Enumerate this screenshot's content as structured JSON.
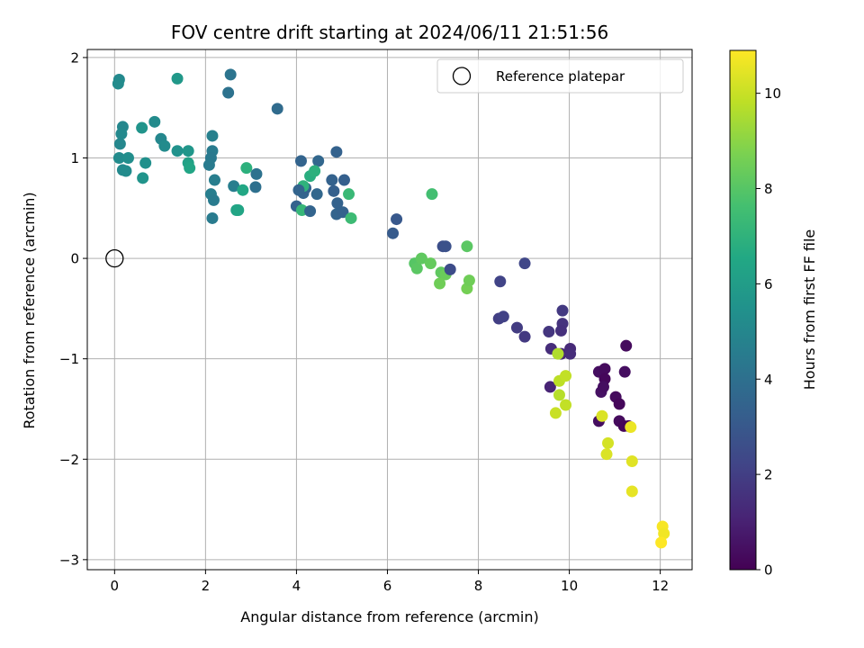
{
  "chart_data": {
    "type": "scatter",
    "title": "FOV centre drift starting at 2024/06/11 21:51:56",
    "xlabel": "Angular distance from reference (arcmin)",
    "ylabel": "Rotation from reference (arcmin)",
    "xlim": [
      -0.6,
      12.7
    ],
    "ylim": [
      -3.1,
      2.08
    ],
    "xticks": [
      0,
      2,
      4,
      6,
      8,
      10,
      12
    ],
    "yticks": [
      -3,
      -2,
      -1,
      0,
      1,
      2
    ],
    "grid": true,
    "legend": {
      "placement": "upper right",
      "entries": [
        "Reference platepar"
      ]
    },
    "reference_point": {
      "x": 0,
      "y": 0
    },
    "colorbar": {
      "label": "Hours from first FF file",
      "range": [
        0,
        10.9
      ],
      "ticks": [
        0,
        2,
        4,
        6,
        8,
        10
      ],
      "colormap": "viridis"
    },
    "points": [
      {
        "x": 0.1,
        "y": 1.78,
        "hours": 5.1
      },
      {
        "x": 0.08,
        "y": 1.74,
        "hours": 5.2
      },
      {
        "x": 1.38,
        "y": 1.79,
        "hours": 5.8
      },
      {
        "x": 2.55,
        "y": 1.83,
        "hours": 4.2
      },
      {
        "x": 2.5,
        "y": 1.65,
        "hours": 4.1
      },
      {
        "x": 3.58,
        "y": 1.49,
        "hours": 3.8
      },
      {
        "x": 0.18,
        "y": 1.31,
        "hours": 5.0
      },
      {
        "x": 0.15,
        "y": 1.24,
        "hours": 5.1
      },
      {
        "x": 0.12,
        "y": 1.14,
        "hours": 5.0
      },
      {
        "x": 0.88,
        "y": 1.36,
        "hours": 5.2
      },
      {
        "x": 0.6,
        "y": 1.3,
        "hours": 5.6
      },
      {
        "x": 1.02,
        "y": 1.19,
        "hours": 5.0
      },
      {
        "x": 1.1,
        "y": 1.12,
        "hours": 5.2
      },
      {
        "x": 1.38,
        "y": 1.07,
        "hours": 5.5
      },
      {
        "x": 1.62,
        "y": 1.07,
        "hours": 5.7
      },
      {
        "x": 2.15,
        "y": 1.22,
        "hours": 4.7
      },
      {
        "x": 2.15,
        "y": 1.07,
        "hours": 4.5
      },
      {
        "x": 0.1,
        "y": 1.0,
        "hours": 5.2
      },
      {
        "x": 0.3,
        "y": 1.0,
        "hours": 5.3
      },
      {
        "x": 0.18,
        "y": 0.88,
        "hours": 5.1
      },
      {
        "x": 0.25,
        "y": 0.87,
        "hours": 5.2
      },
      {
        "x": 0.68,
        "y": 0.95,
        "hours": 5.4
      },
      {
        "x": 0.62,
        "y": 0.8,
        "hours": 5.6
      },
      {
        "x": 1.62,
        "y": 0.95,
        "hours": 6.2
      },
      {
        "x": 1.65,
        "y": 0.9,
        "hours": 6.4
      },
      {
        "x": 2.12,
        "y": 1.0,
        "hours": 4.4
      },
      {
        "x": 2.08,
        "y": 0.93,
        "hours": 4.5
      },
      {
        "x": 2.2,
        "y": 0.78,
        "hours": 4.6
      },
      {
        "x": 2.12,
        "y": 0.64,
        "hours": 4.6
      },
      {
        "x": 2.18,
        "y": 0.58,
        "hours": 4.5
      },
      {
        "x": 2.15,
        "y": 0.4,
        "hours": 4.5
      },
      {
        "x": 2.62,
        "y": 0.72,
        "hours": 4.6
      },
      {
        "x": 2.68,
        "y": 0.48,
        "hours": 6.3
      },
      {
        "x": 2.72,
        "y": 0.48,
        "hours": 6.4
      },
      {
        "x": 2.82,
        "y": 0.68,
        "hours": 6.5
      },
      {
        "x": 2.9,
        "y": 0.9,
        "hours": 6.9
      },
      {
        "x": 3.12,
        "y": 0.84,
        "hours": 4.1
      },
      {
        "x": 3.1,
        "y": 0.71,
        "hours": 4.0
      },
      {
        "x": 4.1,
        "y": 0.97,
        "hours": 3.5
      },
      {
        "x": 4.48,
        "y": 0.97,
        "hours": 3.6
      },
      {
        "x": 4.88,
        "y": 1.06,
        "hours": 3.4
      },
      {
        "x": 4.15,
        "y": 0.65,
        "hours": 3.5
      },
      {
        "x": 4.2,
        "y": 0.7,
        "hours": 3.4
      },
      {
        "x": 4.3,
        "y": 0.82,
        "hours": 6.8
      },
      {
        "x": 4.4,
        "y": 0.87,
        "hours": 6.9
      },
      {
        "x": 4.15,
        "y": 0.72,
        "hours": 7.0
      },
      {
        "x": 4.05,
        "y": 0.68,
        "hours": 3.5
      },
      {
        "x": 4.45,
        "y": 0.64,
        "hours": 3.6
      },
      {
        "x": 4.0,
        "y": 0.52,
        "hours": 3.4
      },
      {
        "x": 4.12,
        "y": 0.48,
        "hours": 7.2
      },
      {
        "x": 4.3,
        "y": 0.47,
        "hours": 3.5
      },
      {
        "x": 4.78,
        "y": 0.78,
        "hours": 3.4
      },
      {
        "x": 4.82,
        "y": 0.67,
        "hours": 3.3
      },
      {
        "x": 5.05,
        "y": 0.78,
        "hours": 3.3
      },
      {
        "x": 4.9,
        "y": 0.55,
        "hours": 3.4
      },
      {
        "x": 4.88,
        "y": 0.44,
        "hours": 3.5
      },
      {
        "x": 5.02,
        "y": 0.46,
        "hours": 3.4
      },
      {
        "x": 5.15,
        "y": 0.64,
        "hours": 7.3
      },
      {
        "x": 5.2,
        "y": 0.4,
        "hours": 7.4
      },
      {
        "x": 6.2,
        "y": 0.39,
        "hours": 3.0
      },
      {
        "x": 6.12,
        "y": 0.25,
        "hours": 3.1
      },
      {
        "x": 6.98,
        "y": 0.64,
        "hours": 7.6
      },
      {
        "x": 7.22,
        "y": 0.12,
        "hours": 2.6
      },
      {
        "x": 7.28,
        "y": 0.12,
        "hours": 2.7
      },
      {
        "x": 7.75,
        "y": 0.12,
        "hours": 8.1
      },
      {
        "x": 6.6,
        "y": -0.05,
        "hours": 8.0
      },
      {
        "x": 6.65,
        "y": -0.1,
        "hours": 8.1
      },
      {
        "x": 6.75,
        "y": 0.0,
        "hours": 8.2
      },
      {
        "x": 6.95,
        "y": -0.05,
        "hours": 8.3
      },
      {
        "x": 7.18,
        "y": -0.14,
        "hours": 8.2
      },
      {
        "x": 7.28,
        "y": -0.16,
        "hours": 8.4
      },
      {
        "x": 7.38,
        "y": -0.11,
        "hours": 2.5
      },
      {
        "x": 7.15,
        "y": -0.25,
        "hours": 8.5
      },
      {
        "x": 7.75,
        "y": -0.3,
        "hours": 8.6
      },
      {
        "x": 7.8,
        "y": -0.22,
        "hours": 8.5
      },
      {
        "x": 8.48,
        "y": -0.23,
        "hours": 2.2
      },
      {
        "x": 9.02,
        "y": -0.05,
        "hours": 2.3
      },
      {
        "x": 8.45,
        "y": -0.6,
        "hours": 2.0
      },
      {
        "x": 8.55,
        "y": -0.58,
        "hours": 2.1
      },
      {
        "x": 8.85,
        "y": -0.69,
        "hours": 1.9
      },
      {
        "x": 9.02,
        "y": -0.78,
        "hours": 1.8
      },
      {
        "x": 9.55,
        "y": -0.73,
        "hours": 1.7
      },
      {
        "x": 9.85,
        "y": -0.52,
        "hours": 1.8
      },
      {
        "x": 9.85,
        "y": -0.65,
        "hours": 1.6
      },
      {
        "x": 9.82,
        "y": -0.72,
        "hours": 1.5
      },
      {
        "x": 9.6,
        "y": -0.9,
        "hours": 1.4
      },
      {
        "x": 9.82,
        "y": -0.95,
        "hours": 1.2
      },
      {
        "x": 10.02,
        "y": -0.9,
        "hours": 1.3
      },
      {
        "x": 10.02,
        "y": -0.95,
        "hours": 1.4
      },
      {
        "x": 9.75,
        "y": -0.95,
        "hours": 9.6
      },
      {
        "x": 9.58,
        "y": -1.28,
        "hours": 1.1
      },
      {
        "x": 9.78,
        "y": -1.22,
        "hours": 9.8
      },
      {
        "x": 9.92,
        "y": -1.17,
        "hours": 9.9
      },
      {
        "x": 9.78,
        "y": -1.36,
        "hours": 9.7
      },
      {
        "x": 9.92,
        "y": -1.46,
        "hours": 9.9
      },
      {
        "x": 9.7,
        "y": -1.54,
        "hours": 10.0
      },
      {
        "x": 11.25,
        "y": -0.87,
        "hours": 0.3
      },
      {
        "x": 10.65,
        "y": -1.13,
        "hours": 0.4
      },
      {
        "x": 10.78,
        "y": -1.1,
        "hours": 0.3
      },
      {
        "x": 10.78,
        "y": -1.2,
        "hours": 0.2
      },
      {
        "x": 11.22,
        "y": -1.13,
        "hours": 0.4
      },
      {
        "x": 10.7,
        "y": -1.33,
        "hours": 0.5
      },
      {
        "x": 10.75,
        "y": -1.28,
        "hours": 0.4
      },
      {
        "x": 11.02,
        "y": -1.38,
        "hours": 0.3
      },
      {
        "x": 11.1,
        "y": -1.45,
        "hours": 0.2
      },
      {
        "x": 10.65,
        "y": -1.62,
        "hours": 0.4
      },
      {
        "x": 11.1,
        "y": -1.62,
        "hours": 0.3
      },
      {
        "x": 11.2,
        "y": -1.67,
        "hours": 0.2
      },
      {
        "x": 11.3,
        "y": -1.67,
        "hours": 0.1
      },
      {
        "x": 10.72,
        "y": -1.57,
        "hours": 10.3
      },
      {
        "x": 11.35,
        "y": -1.68,
        "hours": 10.6
      },
      {
        "x": 10.85,
        "y": -1.84,
        "hours": 10.2
      },
      {
        "x": 10.82,
        "y": -1.95,
        "hours": 10.3
      },
      {
        "x": 11.38,
        "y": -2.02,
        "hours": 10.4
      },
      {
        "x": 11.38,
        "y": -2.32,
        "hours": 10.5
      },
      {
        "x": 12.05,
        "y": -2.67,
        "hours": 10.8
      },
      {
        "x": 12.08,
        "y": -2.74,
        "hours": 10.7
      },
      {
        "x": 12.02,
        "y": -2.83,
        "hours": 10.9
      }
    ]
  }
}
